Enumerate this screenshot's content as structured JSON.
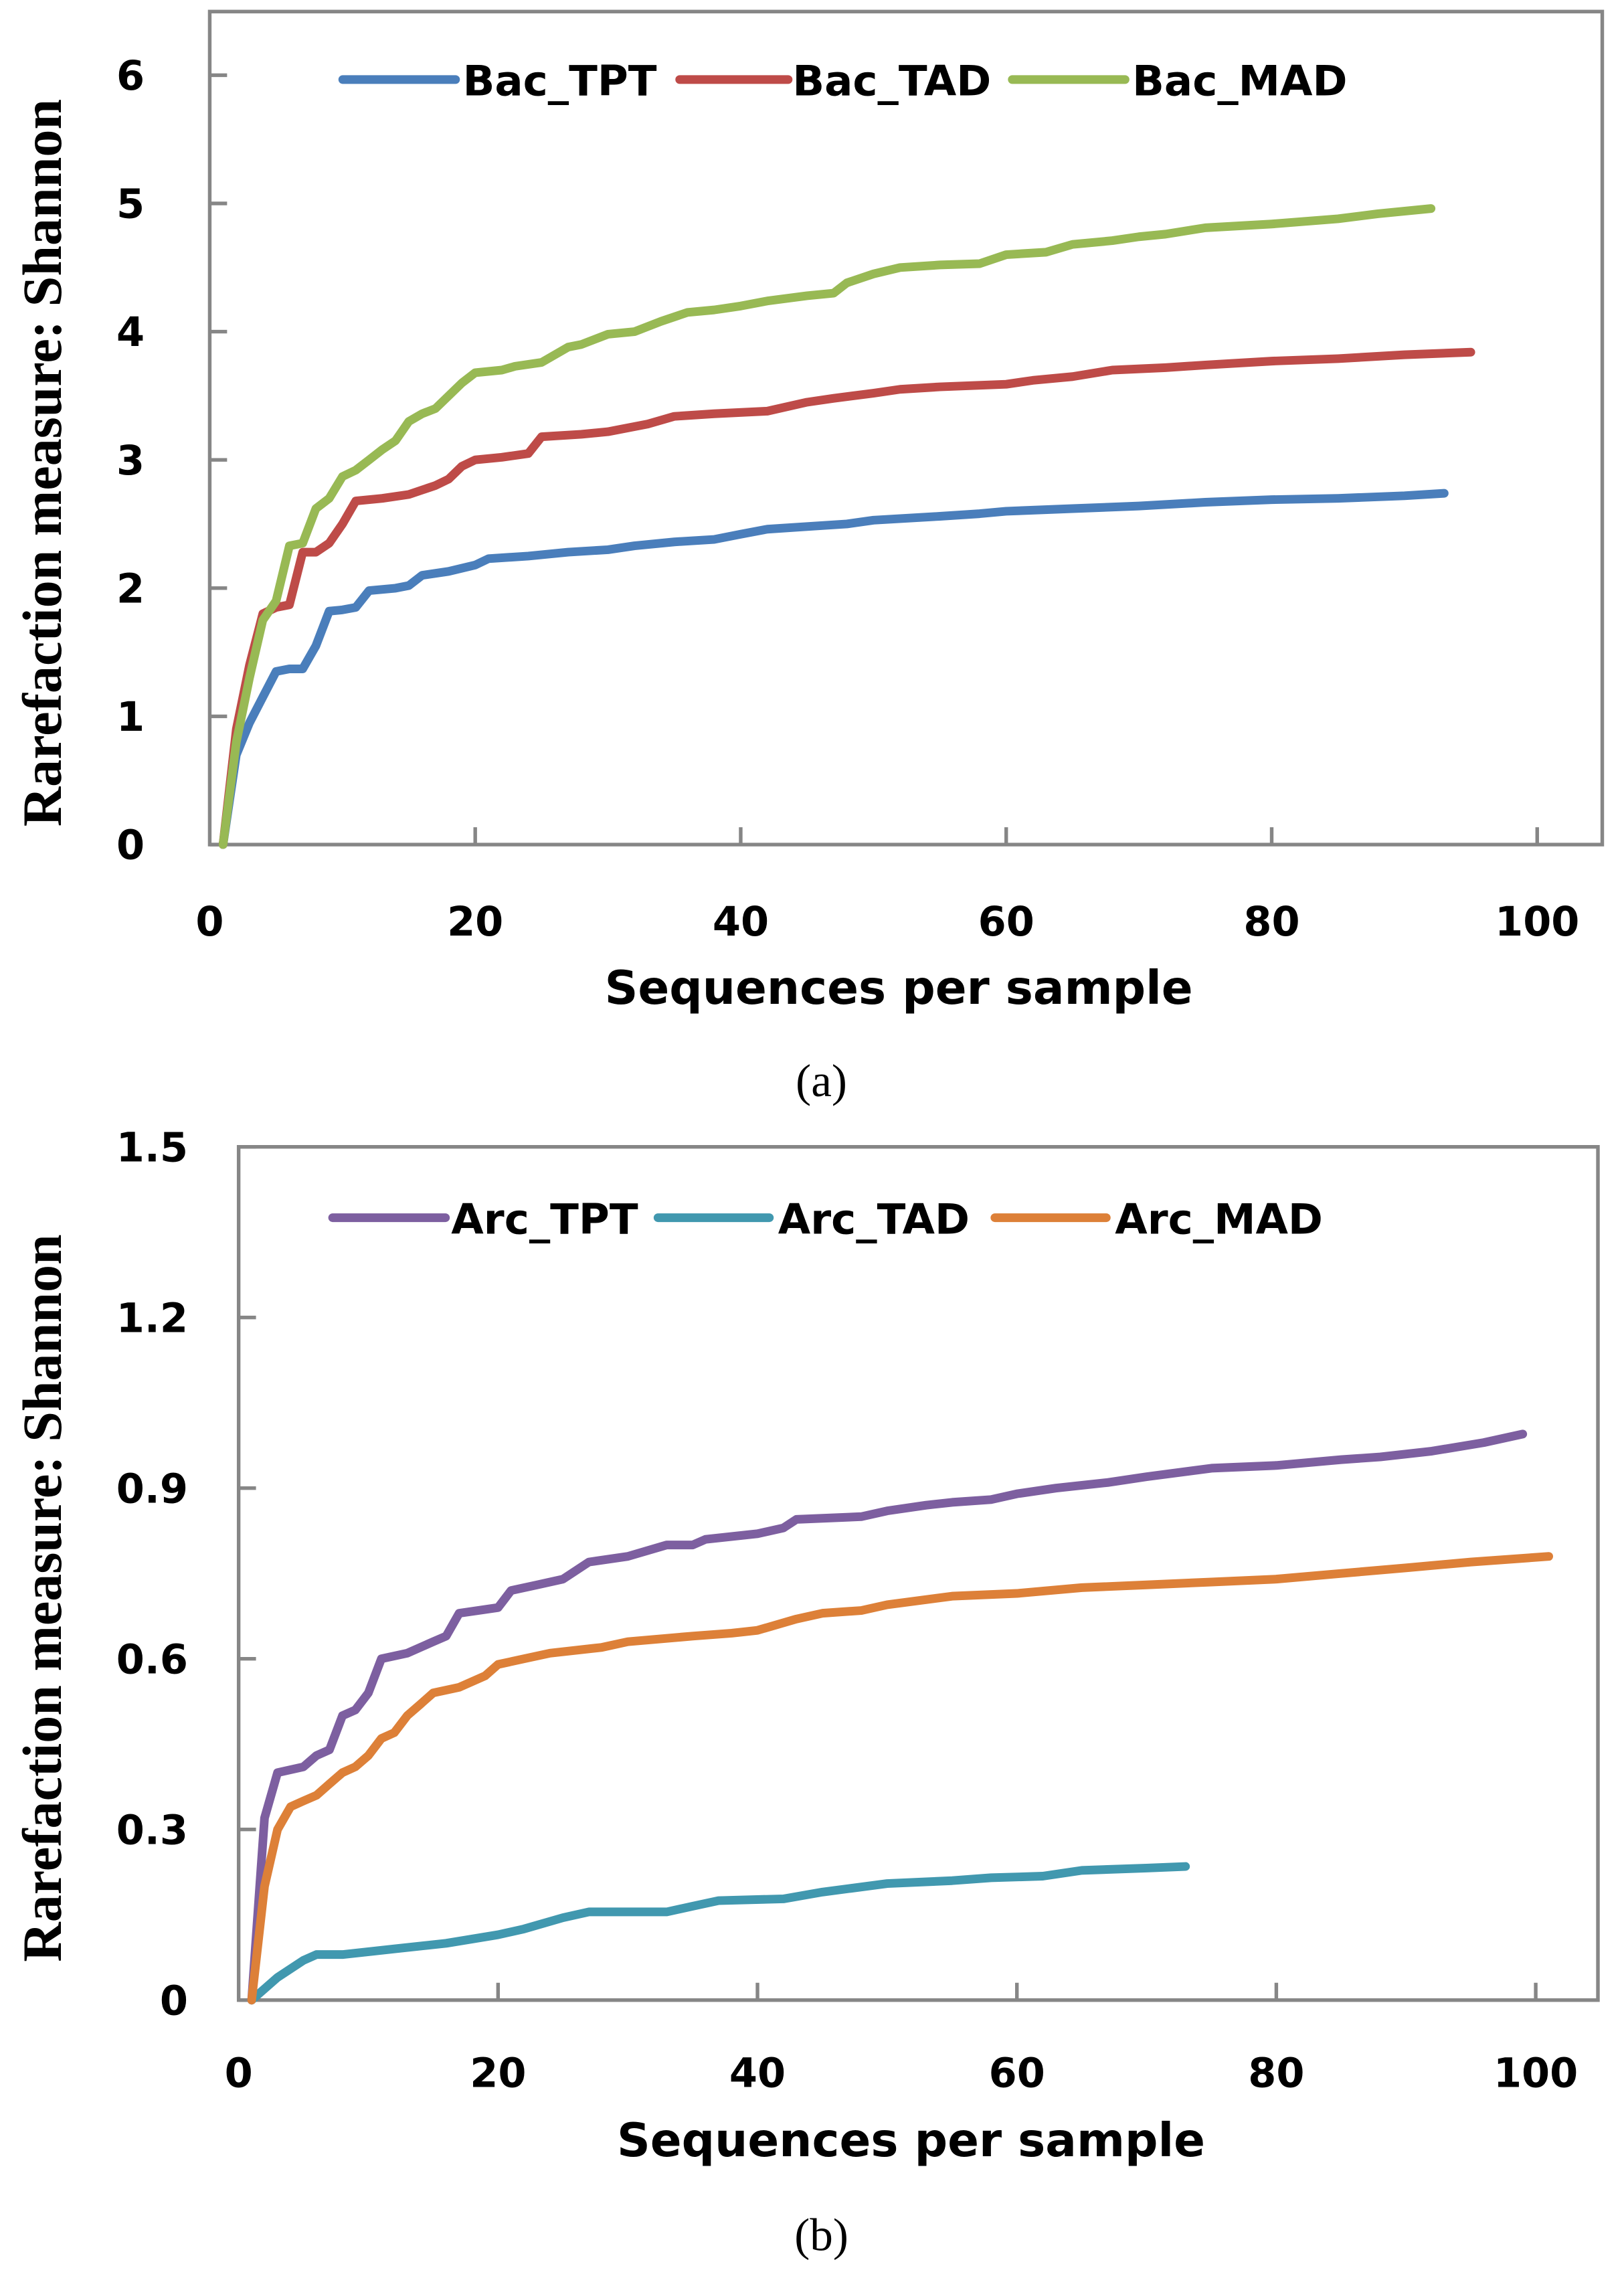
{
  "chart_data": [
    {
      "type": "line",
      "caption": "(a)",
      "xlabel": "Sequences per sample",
      "ylabel": "Rarefaction measure: Shannon",
      "xlim": [
        0,
        105
      ],
      "ylim": [
        0,
        6.5
      ],
      "xticks": [
        0,
        20,
        40,
        60,
        80,
        100
      ],
      "yticks": [
        0,
        1,
        2,
        3,
        4,
        5,
        6
      ],
      "xtick_labels": [
        "0",
        "20",
        "40",
        "60",
        "80",
        "100"
      ],
      "ytick_labels": [
        "0",
        "1",
        "2",
        "3",
        "4",
        "5",
        "6"
      ],
      "grid": false,
      "legend_position": "top",
      "series": [
        {
          "name": "Bac_TPT",
          "color": "#4A7EBB",
          "points": [
            [
              1,
              0
            ],
            [
              2,
              0.7
            ],
            [
              3,
              0.95
            ],
            [
              4,
              1.15
            ],
            [
              5,
              1.35
            ],
            [
              6,
              1.37
            ],
            [
              7,
              1.37
            ],
            [
              8,
              1.55
            ],
            [
              9,
              1.82
            ],
            [
              10,
              1.83
            ],
            [
              11,
              1.85
            ],
            [
              12,
              1.98
            ],
            [
              14,
              2.0
            ],
            [
              15,
              2.02
            ],
            [
              16,
              2.1
            ],
            [
              18,
              2.13
            ],
            [
              20,
              2.18
            ],
            [
              21,
              2.23
            ],
            [
              24,
              2.25
            ],
            [
              27,
              2.28
            ],
            [
              30,
              2.3
            ],
            [
              32,
              2.33
            ],
            [
              35,
              2.36
            ],
            [
              38,
              2.38
            ],
            [
              40,
              2.42
            ],
            [
              42,
              2.46
            ],
            [
              45,
              2.48
            ],
            [
              48,
              2.5
            ],
            [
              50,
              2.53
            ],
            [
              55,
              2.56
            ],
            [
              58,
              2.58
            ],
            [
              60,
              2.6
            ],
            [
              65,
              2.62
            ],
            [
              70,
              2.64
            ],
            [
              75,
              2.67
            ],
            [
              80,
              2.69
            ],
            [
              85,
              2.7
            ],
            [
              90,
              2.72
            ],
            [
              93,
              2.74
            ]
          ]
        },
        {
          "name": "Bac_TAD",
          "color": "#BE4B48",
          "points": [
            [
              1,
              0
            ],
            [
              2,
              0.9
            ],
            [
              3,
              1.4
            ],
            [
              4,
              1.8
            ],
            [
              5,
              1.85
            ],
            [
              6,
              1.87
            ],
            [
              7,
              2.28
            ],
            [
              8,
              2.28
            ],
            [
              9,
              2.35
            ],
            [
              10,
              2.5
            ],
            [
              11,
              2.68
            ],
            [
              13,
              2.7
            ],
            [
              15,
              2.73
            ],
            [
              17,
              2.8
            ],
            [
              18,
              2.85
            ],
            [
              19,
              2.95
            ],
            [
              20,
              3.0
            ],
            [
              22,
              3.02
            ],
            [
              24,
              3.05
            ],
            [
              25,
              3.18
            ],
            [
              28,
              3.2
            ],
            [
              30,
              3.22
            ],
            [
              33,
              3.28
            ],
            [
              35,
              3.34
            ],
            [
              38,
              3.36
            ],
            [
              42,
              3.38
            ],
            [
              45,
              3.45
            ],
            [
              47,
              3.48
            ],
            [
              50,
              3.52
            ],
            [
              52,
              3.55
            ],
            [
              55,
              3.57
            ],
            [
              60,
              3.59
            ],
            [
              62,
              3.62
            ],
            [
              65,
              3.65
            ],
            [
              68,
              3.7
            ],
            [
              72,
              3.72
            ],
            [
              75,
              3.74
            ],
            [
              80,
              3.77
            ],
            [
              85,
              3.79
            ],
            [
              90,
              3.82
            ],
            [
              95,
              3.84
            ]
          ]
        },
        {
          "name": "Bac_MAD",
          "color": "#98B954",
          "points": [
            [
              1,
              0
            ],
            [
              2,
              0.8
            ],
            [
              3,
              1.3
            ],
            [
              4,
              1.75
            ],
            [
              5,
              1.9
            ],
            [
              6,
              2.33
            ],
            [
              7,
              2.35
            ],
            [
              8,
              2.62
            ],
            [
              9,
              2.7
            ],
            [
              10,
              2.87
            ],
            [
              11,
              2.92
            ],
            [
              12,
              3.0
            ],
            [
              13,
              3.08
            ],
            [
              14,
              3.15
            ],
            [
              15,
              3.3
            ],
            [
              16,
              3.36
            ],
            [
              17,
              3.4
            ],
            [
              18,
              3.5
            ],
            [
              19,
              3.6
            ],
            [
              20,
              3.68
            ],
            [
              22,
              3.7
            ],
            [
              23,
              3.73
            ],
            [
              25,
              3.76
            ],
            [
              27,
              3.88
            ],
            [
              28,
              3.9
            ],
            [
              30,
              3.98
            ],
            [
              32,
              4.0
            ],
            [
              34,
              4.08
            ],
            [
              36,
              4.15
            ],
            [
              38,
              4.17
            ],
            [
              40,
              4.2
            ],
            [
              42,
              4.24
            ],
            [
              45,
              4.28
            ],
            [
              47,
              4.3
            ],
            [
              48,
              4.38
            ],
            [
              50,
              4.45
            ],
            [
              52,
              4.5
            ],
            [
              55,
              4.52
            ],
            [
              58,
              4.53
            ],
            [
              60,
              4.6
            ],
            [
              63,
              4.62
            ],
            [
              65,
              4.68
            ],
            [
              68,
              4.71
            ],
            [
              70,
              4.74
            ],
            [
              72,
              4.76
            ],
            [
              75,
              4.81
            ],
            [
              80,
              4.84
            ],
            [
              85,
              4.88
            ],
            [
              88,
              4.92
            ],
            [
              92,
              4.96
            ]
          ]
        }
      ]
    },
    {
      "type": "line",
      "caption": "(b)",
      "xlabel": "Sequences per sample",
      "ylabel": "Rarefaction measure: Shannon",
      "xlim": [
        0,
        105
      ],
      "ylim": [
        0,
        1.5
      ],
      "xticks": [
        0,
        20,
        40,
        60,
        80,
        100
      ],
      "yticks": [
        0,
        0.3,
        0.6,
        0.9,
        1.2,
        1.5
      ],
      "xtick_labels": [
        "0",
        "20",
        "40",
        "60",
        "80",
        "100"
      ],
      "ytick_labels": [
        "0",
        "0.3",
        "0.6",
        "0.9",
        "1.2",
        "1.5"
      ],
      "grid": false,
      "legend_position": "top",
      "series": [
        {
          "name": "Arc_TPT",
          "color": "#7D5FA0",
          "points": [
            [
              1,
              0
            ],
            [
              2,
              0.32
            ],
            [
              3,
              0.4
            ],
            [
              5,
              0.41
            ],
            [
              6,
              0.43
            ],
            [
              7,
              0.44
            ],
            [
              8,
              0.5
            ],
            [
              9,
              0.51
            ],
            [
              10,
              0.54
            ],
            [
              11,
              0.6
            ],
            [
              13,
              0.61
            ],
            [
              15,
              0.63
            ],
            [
              16,
              0.64
            ],
            [
              17,
              0.68
            ],
            [
              20,
              0.69
            ],
            [
              21,
              0.72
            ],
            [
              23,
              0.73
            ],
            [
              25,
              0.74
            ],
            [
              27,
              0.77
            ],
            [
              30,
              0.78
            ],
            [
              33,
              0.8
            ],
            [
              35,
              0.8
            ],
            [
              36,
              0.81
            ],
            [
              40,
              0.82
            ],
            [
              42,
              0.83
            ],
            [
              43,
              0.845
            ],
            [
              48,
              0.85
            ],
            [
              50,
              0.86
            ],
            [
              53,
              0.87
            ],
            [
              55,
              0.875
            ],
            [
              58,
              0.88
            ],
            [
              60,
              0.89
            ],
            [
              63,
              0.9
            ],
            [
              67,
              0.91
            ],
            [
              70,
              0.92
            ],
            [
              75,
              0.935
            ],
            [
              80,
              0.94
            ],
            [
              85,
              0.95
            ],
            [
              88,
              0.955
            ],
            [
              92,
              0.965
            ],
            [
              96,
              0.98
            ],
            [
              99,
              0.995
            ]
          ]
        },
        {
          "name": "Arc_TAD",
          "color": "#4198AF",
          "points": [
            [
              1,
              0
            ],
            [
              3,
              0.04
            ],
            [
              5,
              0.07
            ],
            [
              6,
              0.08
            ],
            [
              8,
              0.08
            ],
            [
              12,
              0.09
            ],
            [
              16,
              0.1
            ],
            [
              20,
              0.115
            ],
            [
              22,
              0.125
            ],
            [
              25,
              0.145
            ],
            [
              27,
              0.155
            ],
            [
              33,
              0.155
            ],
            [
              35,
              0.165
            ],
            [
              37,
              0.175
            ],
            [
              42,
              0.178
            ],
            [
              45,
              0.19
            ],
            [
              50,
              0.205
            ],
            [
              55,
              0.21
            ],
            [
              58,
              0.215
            ],
            [
              62,
              0.218
            ],
            [
              65,
              0.228
            ],
            [
              70,
              0.232
            ],
            [
              73,
              0.235
            ]
          ]
        },
        {
          "name": "Arc_MAD",
          "color": "#DD8038",
          "points": [
            [
              1,
              0
            ],
            [
              2,
              0.2
            ],
            [
              3,
              0.3
            ],
            [
              4,
              0.34
            ],
            [
              5,
              0.35
            ],
            [
              6,
              0.36
            ],
            [
              7,
              0.38
            ],
            [
              8,
              0.4
            ],
            [
              9,
              0.41
            ],
            [
              10,
              0.43
            ],
            [
              11,
              0.46
            ],
            [
              12,
              0.47
            ],
            [
              13,
              0.5
            ],
            [
              14,
              0.52
            ],
            [
              15,
              0.54
            ],
            [
              17,
              0.55
            ],
            [
              19,
              0.57
            ],
            [
              20,
              0.59
            ],
            [
              22,
              0.6
            ],
            [
              24,
              0.61
            ],
            [
              28,
              0.62
            ],
            [
              30,
              0.63
            ],
            [
              35,
              0.64
            ],
            [
              38,
              0.645
            ],
            [
              40,
              0.65
            ],
            [
              43,
              0.67
            ],
            [
              45,
              0.68
            ],
            [
              48,
              0.685
            ],
            [
              50,
              0.695
            ],
            [
              55,
              0.71
            ],
            [
              60,
              0.715
            ],
            [
              65,
              0.725
            ],
            [
              70,
              0.73
            ],
            [
              75,
              0.735
            ],
            [
              80,
              0.74
            ],
            [
              85,
              0.75
            ],
            [
              90,
              0.76
            ],
            [
              95,
              0.77
            ],
            [
              101,
              0.78
            ]
          ]
        }
      ]
    }
  ]
}
